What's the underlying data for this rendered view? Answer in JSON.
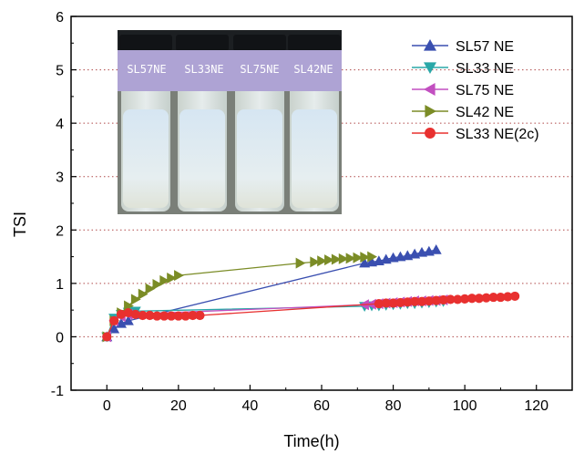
{
  "chart_data": {
    "type": "line",
    "title": "",
    "xlabel": "Time(h)",
    "ylabel": "TSI",
    "xlim": [
      -10,
      130
    ],
    "ylim": [
      -1,
      6
    ],
    "xticks": [
      0,
      20,
      40,
      60,
      80,
      100,
      120
    ],
    "yticks": [
      -1,
      0,
      1,
      2,
      3,
      4,
      5,
      6
    ],
    "grid": "horizontal dotted",
    "legend_position": "top-right",
    "inset_photo_labels": [
      "SL57NE",
      "SL33NE",
      "SL75NE",
      "SL42NE"
    ],
    "series": [
      {
        "name": "SL57 NE",
        "color": "#3a4fb0",
        "marker": "triangle-up",
        "x": [
          0,
          2,
          4,
          6,
          72,
          74,
          76,
          78,
          80,
          82,
          84,
          86,
          88,
          90,
          92
        ],
        "y": [
          0,
          0.15,
          0.25,
          0.3,
          1.38,
          1.4,
          1.42,
          1.45,
          1.48,
          1.5,
          1.52,
          1.55,
          1.58,
          1.6,
          1.63
        ]
      },
      {
        "name": "SL33 NE",
        "color": "#2aa8a8",
        "marker": "triangle-down",
        "x": [
          0,
          2,
          4,
          6,
          8,
          72,
          74,
          76,
          78,
          80,
          82,
          84,
          86,
          88,
          90,
          92,
          94
        ],
        "y": [
          0,
          0.35,
          0.42,
          0.46,
          0.48,
          0.57,
          0.58,
          0.58,
          0.59,
          0.6,
          0.61,
          0.62,
          0.62,
          0.63,
          0.64,
          0.65,
          0.66
        ]
      },
      {
        "name": "SL75 NE",
        "color": "#c24fc0",
        "marker": "triangle-left",
        "x": [
          0,
          2,
          4,
          6,
          72,
          74,
          76,
          78,
          80,
          82,
          84,
          86,
          88,
          90,
          92,
          94
        ],
        "y": [
          0,
          0.3,
          0.38,
          0.42,
          0.6,
          0.61,
          0.62,
          0.63,
          0.64,
          0.65,
          0.66,
          0.67,
          0.67,
          0.68,
          0.68,
          0.69
        ]
      },
      {
        "name": "SL42 NE",
        "color": "#7b8c26",
        "marker": "triangle-right",
        "x": [
          0,
          2,
          4,
          6,
          8,
          10,
          12,
          14,
          16,
          18,
          20,
          54,
          58,
          60,
          62,
          64,
          66,
          68,
          70,
          72,
          74
        ],
        "y": [
          0,
          0.3,
          0.45,
          0.58,
          0.7,
          0.8,
          0.9,
          0.98,
          1.05,
          1.1,
          1.15,
          1.38,
          1.4,
          1.42,
          1.44,
          1.45,
          1.46,
          1.47,
          1.48,
          1.49,
          1.5
        ]
      },
      {
        "name": "SL33 NE(2c)",
        "color": "#e8302f",
        "marker": "circle",
        "x": [
          0,
          2,
          4,
          6,
          8,
          10,
          12,
          14,
          16,
          18,
          20,
          22,
          24,
          26,
          76,
          78,
          80,
          82,
          84,
          86,
          88,
          90,
          92,
          94,
          96,
          98,
          100,
          102,
          104,
          106,
          108,
          110,
          112,
          114
        ],
        "y": [
          0,
          0.3,
          0.42,
          0.45,
          0.42,
          0.4,
          0.4,
          0.39,
          0.39,
          0.39,
          0.39,
          0.39,
          0.4,
          0.4,
          0.62,
          0.63,
          0.63,
          0.64,
          0.65,
          0.66,
          0.66,
          0.67,
          0.68,
          0.69,
          0.7,
          0.7,
          0.71,
          0.72,
          0.72,
          0.73,
          0.74,
          0.74,
          0.75,
          0.76
        ]
      }
    ]
  }
}
